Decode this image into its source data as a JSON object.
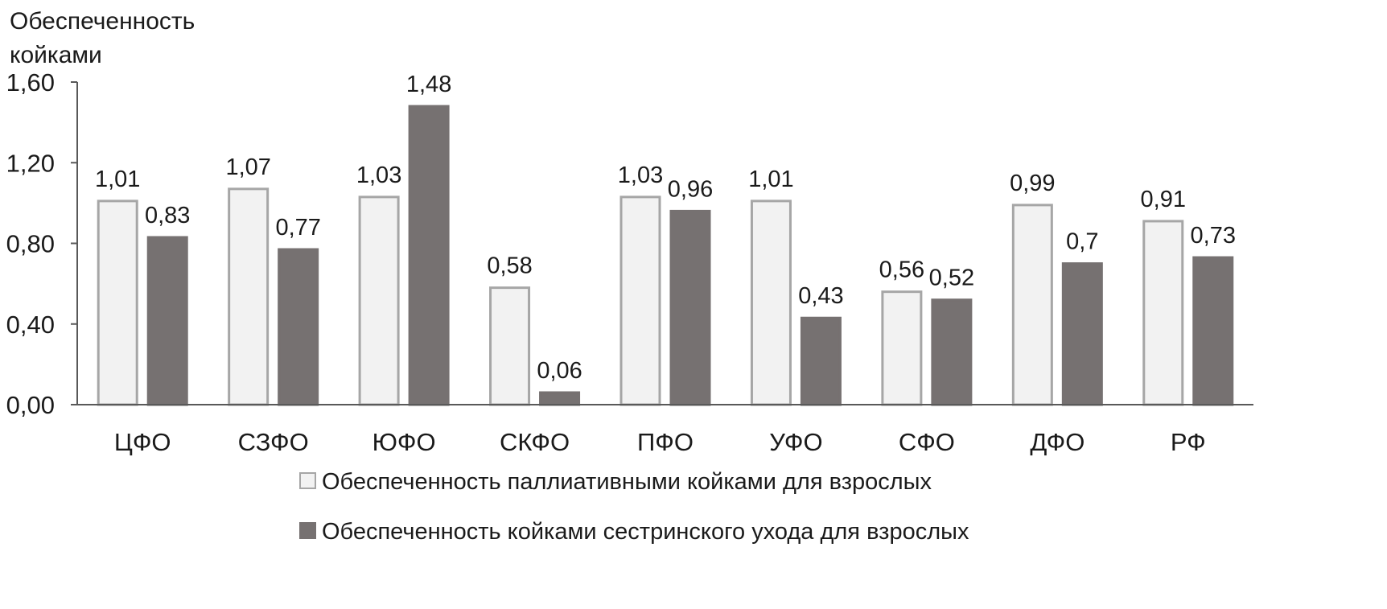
{
  "chart_data": {
    "type": "bar",
    "title": "",
    "ylabel_lines": [
      "Обеспеченность",
      "койками"
    ],
    "ylim": [
      0,
      1.6
    ],
    "yticks": [
      "0,00",
      "0,40",
      "0,80",
      "1,20",
      "1,60"
    ],
    "ytick_values": [
      0,
      0.4,
      0.8,
      1.2,
      1.6
    ],
    "categories": [
      "ЦФО",
      "СЗФО",
      "ЮФО",
      "СКФО",
      "ПФО",
      "УФО",
      "СФО",
      "ДФО",
      "РФ"
    ],
    "series": [
      {
        "name": "Обеспеченность паллиативными койками для взрослых",
        "values": [
          1.01,
          1.07,
          1.03,
          0.58,
          1.03,
          1.01,
          0.56,
          0.99,
          0.91
        ],
        "labels": [
          "1,01",
          "1,07",
          "1,03",
          "0,58",
          "1,03",
          "1,01",
          "0,56",
          "0,99",
          "0,91"
        ],
        "fill": "#f2f2f2",
        "stroke": "#a6a6a6"
      },
      {
        "name": "Обеспеченность койками сестринского ухода для взрослых",
        "values": [
          0.83,
          0.77,
          1.48,
          0.06,
          0.96,
          0.43,
          0.52,
          0.7,
          0.73
        ],
        "labels": [
          "0,83",
          "0,77",
          "1,48",
          "0,06",
          "0,96",
          "0,43",
          "0,52",
          "0,7",
          "0,73"
        ],
        "fill": "#767171",
        "stroke": "#767171"
      }
    ],
    "grid": false,
    "legend_position": "bottom",
    "axis_color": "#595959"
  }
}
